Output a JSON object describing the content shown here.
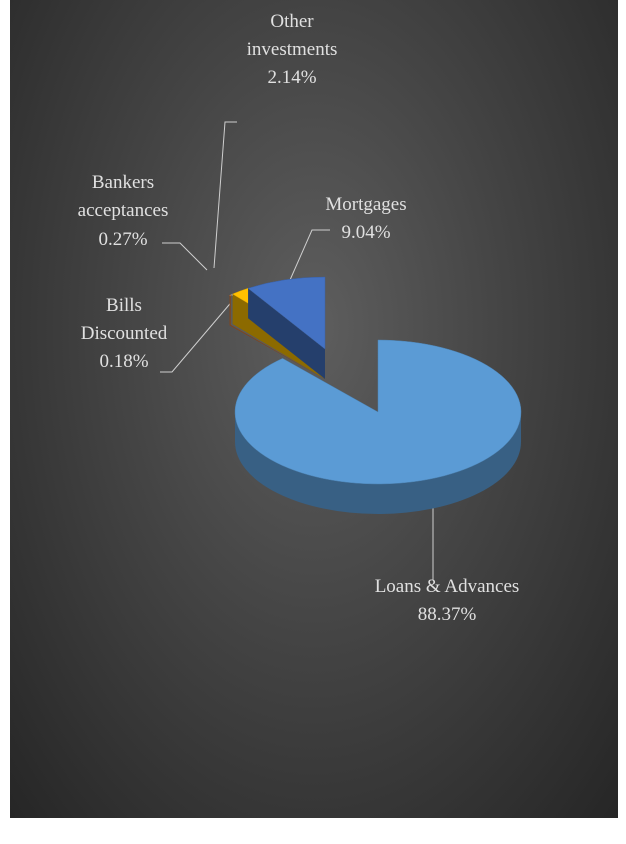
{
  "chart_data": {
    "type": "pie",
    "categories": [
      "Loans & Advances",
      "Bills Discounted",
      "Bankers acceptances",
      "Other investments",
      "Mortgages"
    ],
    "values": [
      88.37,
      0.18,
      0.27,
      2.14,
      9.04
    ],
    "value_labels": [
      "88.37%",
      "0.18%",
      "0.27%",
      "2.14%",
      "9.04%"
    ],
    "colors": [
      "#5b9bd5",
      "#ed7d31",
      "#a5a5a5",
      "#ffc000",
      "#4472c4"
    ]
  }
}
